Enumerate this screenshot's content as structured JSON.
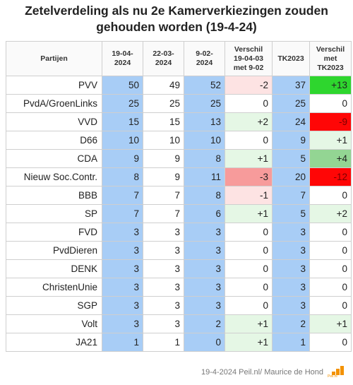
{
  "title": "Zetelverdeling als nu 2e Kamerverkiezingen zouden gehouden worden (19-4-24)",
  "columns": [
    "Partijen",
    "19-04-2024",
    "22-03-2024",
    "9-02-2024",
    "Verschil 19-04-03 met 9-02",
    "TK2023",
    "Verschil met TK2023"
  ],
  "rows": [
    {
      "party": "PVV",
      "d1": "50",
      "d2": "49",
      "d3": "52",
      "diff1": "-2",
      "tk": "37",
      "diff2": "+13"
    },
    {
      "party": "PvdA/GroenLinks",
      "d1": "25",
      "d2": "25",
      "d3": "25",
      "diff1": "0",
      "tk": "25",
      "diff2": "0"
    },
    {
      "party": "VVD",
      "d1": "15",
      "d2": "15",
      "d3": "13",
      "diff1": "+2",
      "tk": "24",
      "diff2": "-9"
    },
    {
      "party": "D66",
      "d1": "10",
      "d2": "10",
      "d3": "10",
      "diff1": "0",
      "tk": "9",
      "diff2": "+1"
    },
    {
      "party": "CDA",
      "d1": "9",
      "d2": "9",
      "d3": "8",
      "diff1": "+1",
      "tk": "5",
      "diff2": "+4"
    },
    {
      "party": "Nieuw Soc.Contr.",
      "d1": "8",
      "d2": "9",
      "d3": "11",
      "diff1": "-3",
      "tk": "20",
      "diff2": "-12"
    },
    {
      "party": "BBB",
      "d1": "7",
      "d2": "7",
      "d3": "8",
      "diff1": "-1",
      "tk": "7",
      "diff2": "0"
    },
    {
      "party": "SP",
      "d1": "7",
      "d2": "7",
      "d3": "6",
      "diff1": "+1",
      "tk": "5",
      "diff2": "+2"
    },
    {
      "party": "FVD",
      "d1": "3",
      "d2": "3",
      "d3": "3",
      "diff1": "0",
      "tk": "3",
      "diff2": "0"
    },
    {
      "party": "PvdDieren",
      "d1": "3",
      "d2": "3",
      "d3": "3",
      "diff1": "0",
      "tk": "3",
      "diff2": "0"
    },
    {
      "party": "DENK",
      "d1": "3",
      "d2": "3",
      "d3": "3",
      "diff1": "0",
      "tk": "3",
      "diff2": "0"
    },
    {
      "party": "ChristenUnie",
      "d1": "3",
      "d2": "3",
      "d3": "3",
      "diff1": "0",
      "tk": "3",
      "diff2": "0"
    },
    {
      "party": "SGP",
      "d1": "3",
      "d2": "3",
      "d3": "3",
      "diff1": "0",
      "tk": "3",
      "diff2": "0"
    },
    {
      "party": "Volt",
      "d1": "3",
      "d2": "3",
      "d3": "2",
      "diff1": "+1",
      "tk": "2",
      "diff2": "+1"
    },
    {
      "party": "JA21",
      "d1": "1",
      "d2": "1",
      "d3": "0",
      "diff1": "+1",
      "tk": "1",
      "diff2": "0"
    }
  ],
  "colors": {
    "highlight_column": "#a8cdf6",
    "increase": [
      "#e5f7e5",
      "#93d593",
      "#2ed62e"
    ],
    "decrease": [
      "#fde3e3",
      "#f79b9b",
      "#ff0606"
    ]
  },
  "footer": "19-4-2024 Peil.nl/ Maurice de Hond",
  "logo": {
    "icon": "peil-bar-logo-icon",
    "text": "Peil.nl"
  }
}
